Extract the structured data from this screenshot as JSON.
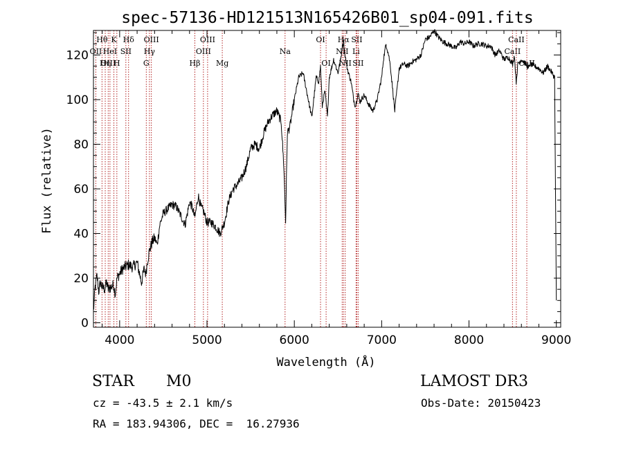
{
  "chart_data": {
    "type": "line",
    "title": "spec-57136-HD121513N165426B01_sp04-091.fits",
    "xlabel": "Wavelength (Å)",
    "ylabel": "Flux (relative)",
    "xlim": [
      3700,
      9050
    ],
    "ylim": [
      -2,
      131
    ],
    "xticks": [
      4000,
      5000,
      6000,
      7000,
      8000,
      9000
    ],
    "yticks": [
      0,
      20,
      40,
      60,
      80,
      100,
      120
    ],
    "grid": false,
    "legend": "none",
    "colors": {
      "spectrum": "#000000",
      "lines": "#b22222"
    },
    "series": [
      {
        "x": [
          3700,
          3720,
          3740,
          3760,
          3780,
          3800,
          3830,
          3850,
          3870,
          3900,
          3930,
          3950,
          3970,
          4000,
          4030,
          4060,
          4100,
          4150,
          4200,
          4250,
          4280,
          4300,
          4320,
          4340,
          4370,
          4400,
          4430,
          4460,
          4500,
          4550,
          4600,
          4650,
          4700,
          4750,
          4800,
          4830,
          4860,
          4900,
          4930,
          4960,
          5000,
          5050,
          5100,
          5150,
          5200,
          5250,
          5300,
          5350,
          5400,
          5450,
          5500,
          5550,
          5600,
          5650,
          5700,
          5750,
          5800,
          5850,
          5880,
          5900,
          5910,
          5920,
          5950,
          6000,
          6050,
          6100,
          6150,
          6200,
          6250,
          6280,
          6300,
          6320,
          6350,
          6380,
          6400,
          6450,
          6500,
          6530,
          6550,
          6565,
          6580,
          6600,
          6620,
          6650,
          6680,
          6700,
          6730,
          6750,
          6800,
          6850,
          6880,
          6900,
          6950,
          7000,
          7020,
          7050,
          7080,
          7100,
          7150,
          7180,
          7200,
          7250,
          7300,
          7350,
          7400,
          7450,
          7500,
          7550,
          7600,
          7650,
          7700,
          7750,
          7800,
          7850,
          7900,
          7950,
          8000,
          8050,
          8100,
          8150,
          8200,
          8250,
          8300,
          8350,
          8400,
          8450,
          8500,
          8520,
          8540,
          8560,
          8600,
          8650,
          8680,
          8700,
          8750,
          8800,
          8850,
          8900,
          8950,
          8980,
          9000
        ],
        "y": [
          5,
          16,
          21,
          14,
          18,
          16,
          15,
          18,
          15,
          16,
          17,
          13,
          20,
          22,
          24,
          25,
          26,
          25,
          27,
          18,
          24,
          22,
          28,
          32,
          36,
          38,
          35,
          44,
          49,
          51,
          53,
          52,
          48,
          44,
          54,
          52,
          47,
          57,
          52,
          50,
          45,
          45,
          43,
          40,
          45,
          55,
          60,
          62,
          65,
          70,
          78,
          80,
          78,
          85,
          90,
          93,
          95,
          90,
          70,
          45,
          65,
          85,
          88,
          100,
          110,
          112,
          102,
          92,
          110,
          108,
          115,
          97,
          104,
          92,
          110,
          118,
          112,
          118,
          124,
          126,
          120,
          115,
          112,
          108,
          100,
          97,
          103,
          99,
          102,
          98,
          96,
          95,
          100,
          110,
          118,
          125,
          120,
          115,
          95,
          106,
          114,
          116,
          115,
          117,
          118,
          120,
          127,
          128,
          131,
          128,
          126,
          125,
          124,
          123,
          126,
          125,
          126,
          124,
          125,
          125,
          124,
          124,
          120,
          122,
          118,
          119,
          116,
          120,
          108,
          116,
          118,
          116,
          114,
          116,
          115,
          114,
          112,
          115,
          112,
          110,
          10
        ]
      }
    ],
    "line_markers": [
      {
        "label": "OII",
        "x": 3727,
        "row": 2
      },
      {
        "label": "Hθ",
        "x": 3798,
        "row": 1
      },
      {
        "label": "OIII",
        "x": 3869,
        "row": 3
      },
      {
        "label": "Hη",
        "x": 3835,
        "row": 3
      },
      {
        "label": "HeI",
        "x": 3889,
        "row": 2
      },
      {
        "label": "K",
        "x": 3934,
        "row": 1
      },
      {
        "label": "H",
        "x": 3968,
        "row": 3
      },
      {
        "label": "SII",
        "x": 4071,
        "row": 2
      },
      {
        "label": "Hδ",
        "x": 4102,
        "row": 1
      },
      {
        "label": "G",
        "x": 4305,
        "row": 3
      },
      {
        "label": "OIII",
        "x": 4363,
        "row": 1
      },
      {
        "label": "Hγ",
        "x": 4341,
        "row": 2
      },
      {
        "label": "Hβ",
        "x": 4861,
        "row": 3
      },
      {
        "label": "OIII",
        "x": 4959,
        "row": 2
      },
      {
        "label": "OIII",
        "x": 5007,
        "row": 1
      },
      {
        "label": "Mg",
        "x": 5175,
        "row": 3
      },
      {
        "label": "Na",
        "x": 5894,
        "row": 2
      },
      {
        "label": "OI",
        "x": 6300,
        "row": 1
      },
      {
        "label": "OI",
        "x": 6364,
        "row": 3
      },
      {
        "label": "NII",
        "x": 6548,
        "row": 2
      },
      {
        "label": "Hα",
        "x": 6563,
        "row": 1
      },
      {
        "label": "NII",
        "x": 6583,
        "row": 3
      },
      {
        "label": "Li",
        "x": 6707,
        "row": 2
      },
      {
        "label": "SII",
        "x": 6716,
        "row": 1
      },
      {
        "label": "SII",
        "x": 6731,
        "row": 3
      },
      {
        "label": "CaII",
        "x": 8498,
        "row": 2
      },
      {
        "label": "CaII",
        "x": 8542,
        "row": 1
      },
      {
        "label": "CaII",
        "x": 8662,
        "row": 3
      }
    ]
  },
  "info": {
    "object_type": "STAR",
    "subclass": "M0",
    "survey": "LAMOST DR3",
    "cz": "cz = -43.5 ± 2.1 km/s",
    "obs_date": "Obs-Date: 20150423",
    "coords": "RA = 183.94306, DEC =  16.27936"
  }
}
